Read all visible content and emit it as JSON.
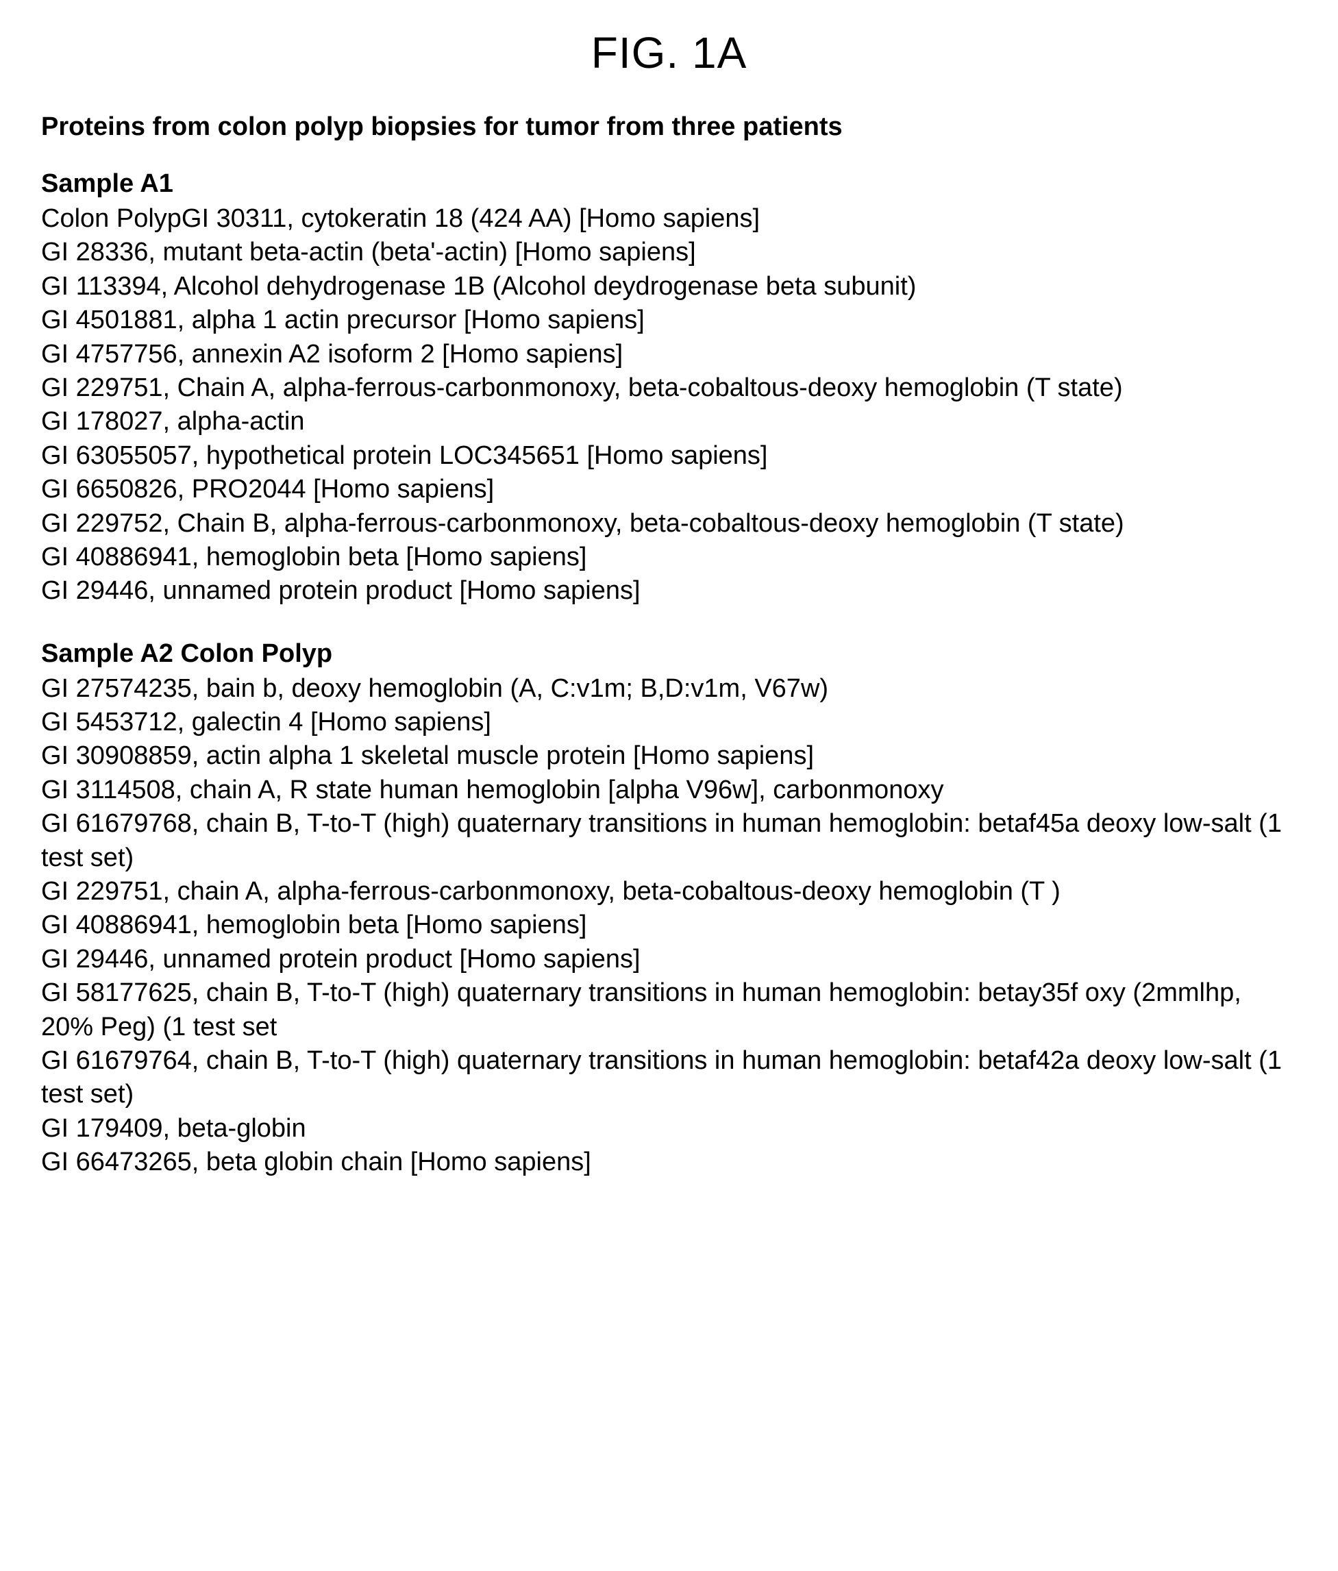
{
  "figure_title": "FIG. 1A",
  "main_heading": "Proteins from colon polyp biopsies for tumor from three patients",
  "sample_a1": {
    "heading": "Sample A1",
    "entries": [
      "Colon PolypGI 30311, cytokeratin 18 (424 AA) [Homo sapiens]",
      "GI 28336, mutant beta-actin (beta'-actin) [Homo sapiens]",
      "GI 113394, Alcohol dehydrogenase 1B (Alcohol deydrogenase beta subunit)",
      "GI 4501881, alpha 1 actin precursor [Homo sapiens]",
      "GI 4757756, annexin A2 isoform 2 [Homo sapiens]",
      "GI 229751, Chain A, alpha-ferrous-carbonmonoxy, beta-cobaltous-deoxy hemoglobin (T state)",
      "GI 178027, alpha-actin",
      "GI 63055057, hypothetical protein LOC345651 [Homo sapiens]",
      "GI 6650826, PRO2044 [Homo sapiens]",
      "GI 229752, Chain B, alpha-ferrous-carbonmonoxy, beta-cobaltous-deoxy hemoglobin (T state)",
      "GI 40886941, hemoglobin beta [Homo sapiens]",
      "GI 29446, unnamed protein product [Homo sapiens]"
    ]
  },
  "sample_a2": {
    "heading": "Sample A2 Colon Polyp",
    "entries": [
      "GI 27574235, bain b, deoxy hemoglobin (A, C:v1m; B,D:v1m, V67w)",
      "GI 5453712, galectin 4 [Homo sapiens]",
      "GI 30908859, actin alpha 1 skeletal muscle protein [Homo sapiens]",
      "GI 3114508, chain A, R state human hemoglobin [alpha V96w], carbonmonoxy",
      "GI 61679768, chain B, T-to-T (high) quaternary transitions in human hemoglobin: betaf45a deoxy low-salt (1 test set)",
      "GI 229751, chain A, alpha-ferrous-carbonmonoxy, beta-cobaltous-deoxy hemoglobin (T )",
      "GI 40886941, hemoglobin beta [Homo sapiens]",
      "GI 29446, unnamed protein product [Homo sapiens]",
      "GI 58177625, chain B, T-to-T (high) quaternary transitions in human hemoglobin: betay35f oxy (2mmlhp, 20% Peg) (1 test set",
      "GI 61679764, chain B, T-to-T (high) quaternary transitions in human hemoglobin: betaf42a deoxy low-salt (1 test set)",
      "GI 179409, beta-globin",
      "GI 66473265, beta globin chain [Homo sapiens]"
    ]
  },
  "styling": {
    "background_color": "#ffffff",
    "text_color": "#000000",
    "figure_title_fontsize": 64,
    "heading_fontsize": 38,
    "body_fontsize": 38,
    "font_family": "Arial, Helvetica, sans-serif"
  }
}
